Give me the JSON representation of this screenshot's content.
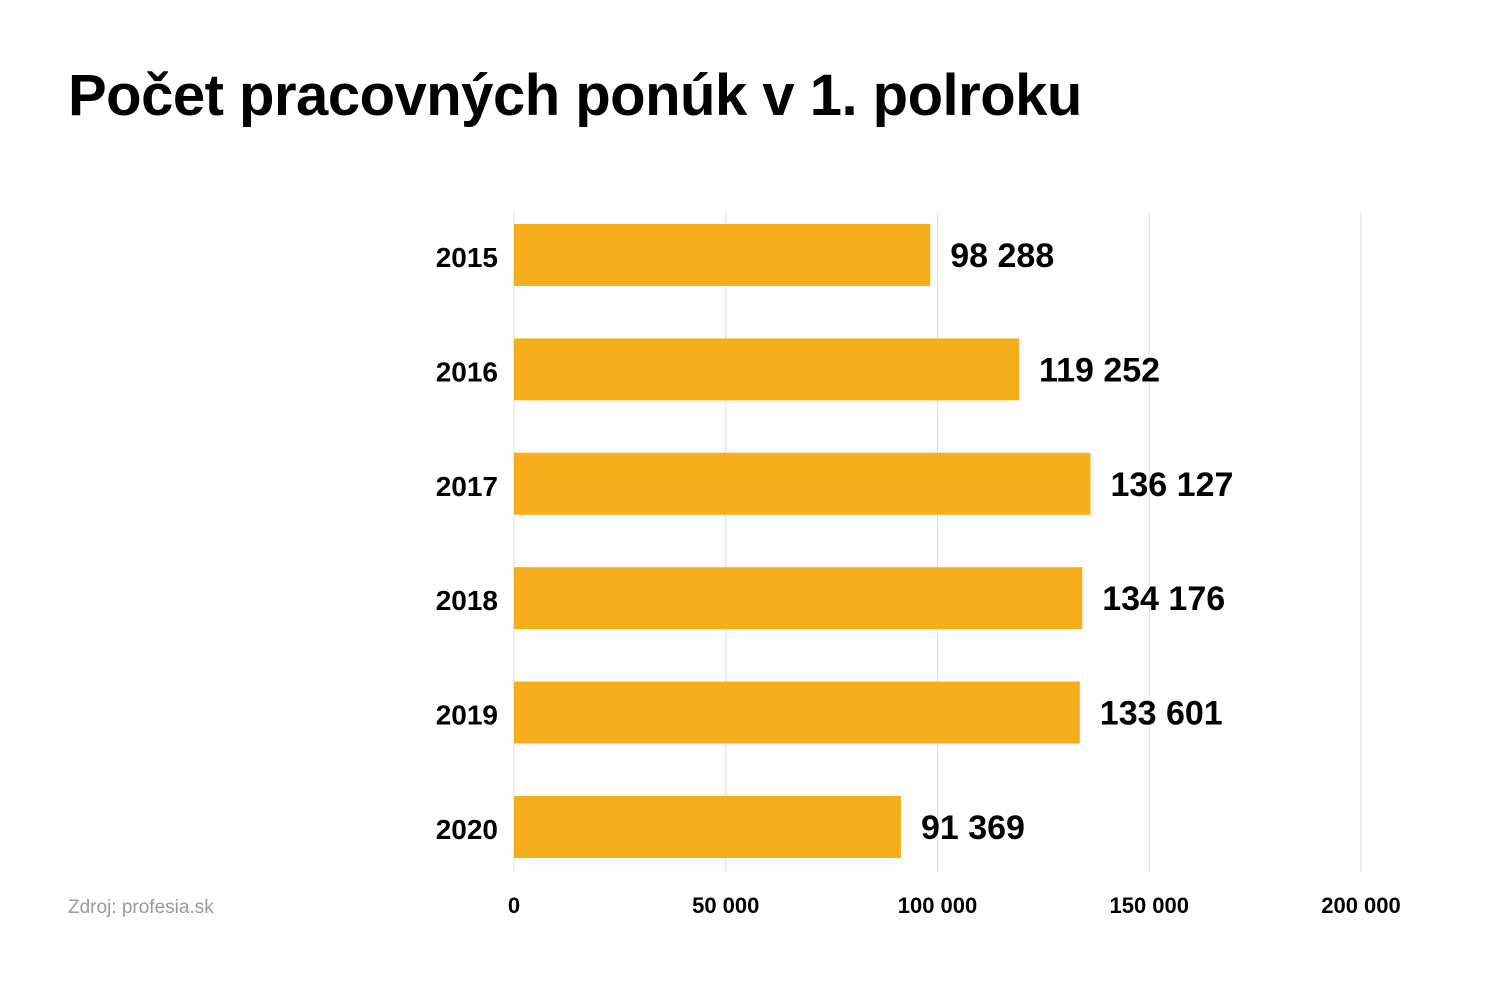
{
  "header": {
    "title": "Počet pracovných ponúk v 1. polroku"
  },
  "footer": {
    "source": "Zdroj: profesia.sk"
  },
  "chart_data": {
    "type": "bar",
    "orientation": "horizontal",
    "title": "Počet pracovných ponúk v 1. polroku",
    "xlabel": "",
    "ylabel": "",
    "categories": [
      "2015",
      "2016",
      "2017",
      "2018",
      "2019",
      "2020"
    ],
    "values": [
      98288,
      119252,
      136127,
      134176,
      133601,
      91369
    ],
    "value_labels": [
      "98 288",
      "119 252",
      "136 127",
      "134 176",
      "133 601",
      "91 369"
    ],
    "xlim": [
      0,
      200000
    ],
    "ticks": [
      0,
      50000,
      100000,
      150000,
      200000
    ],
    "tick_labels": [
      "0",
      "50 000",
      "100 000",
      "150 000",
      "200 000"
    ],
    "grid": "vertical",
    "legend": "none",
    "bar_color": "#F7AE1D",
    "grid_color": "#dddddd"
  }
}
